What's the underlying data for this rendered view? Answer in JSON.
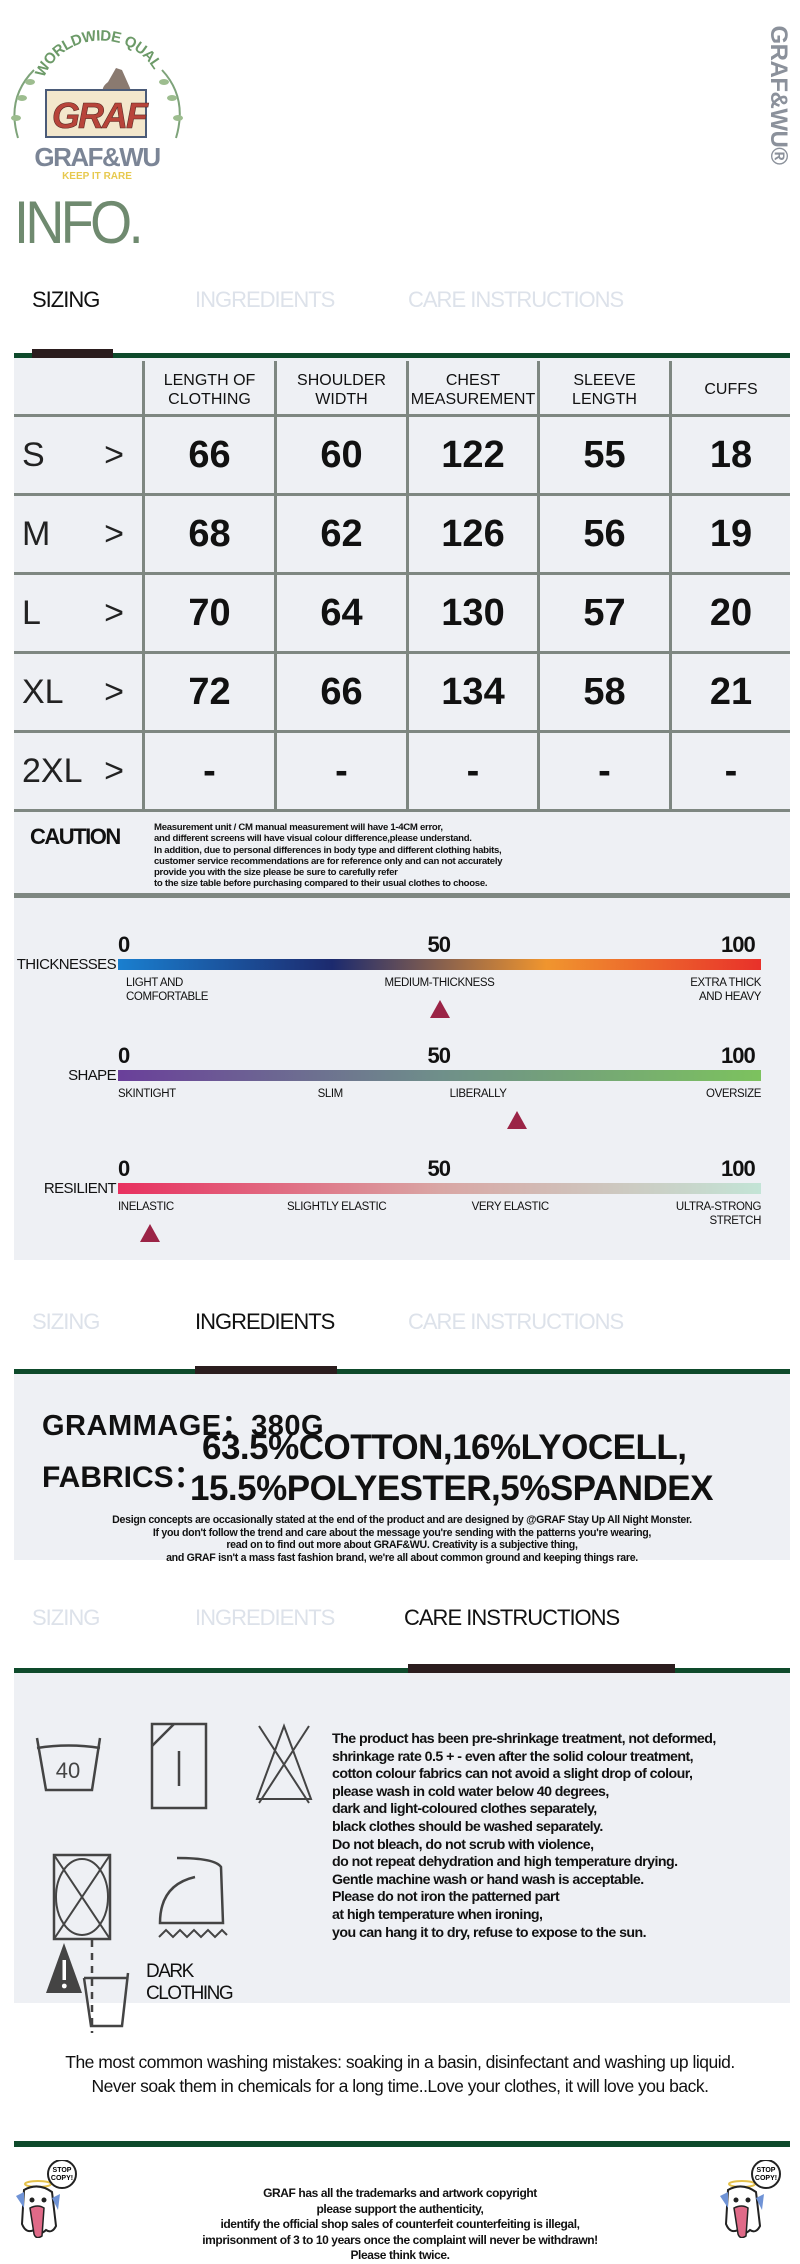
{
  "header": {
    "logo": {
      "arc_text": "WORLDWIDE QUALITY",
      "box_text": "GRAF",
      "brand": "GRAF&WU",
      "tagline": "KEEP IT RARE"
    },
    "vertical_brand": "GRAF&WU®",
    "title": "INFO."
  },
  "tabs": [
    "SIZING",
    "INGREDIENTS",
    "CARE INSTRUCTIONS"
  ],
  "sizing": {
    "columns": [
      "LENGTH OF CLOTHING",
      "SHOULDER WIDTH",
      "CHEST MEASUREMENT",
      "SLEEVE LENGTH",
      "CUFFS"
    ],
    "rows": [
      {
        "size": "S",
        "arrow": ">",
        "values": [
          "66",
          "60",
          "122",
          "55",
          "18"
        ]
      },
      {
        "size": "M",
        "arrow": ">",
        "values": [
          "68",
          "62",
          "126",
          "56",
          "19"
        ]
      },
      {
        "size": "L",
        "arrow": ">",
        "values": [
          "70",
          "64",
          "130",
          "57",
          "20"
        ]
      },
      {
        "size": "XL",
        "arrow": ">",
        "values": [
          "72",
          "66",
          "134",
          "58",
          "21"
        ]
      },
      {
        "size": "2XL",
        "arrow": ">",
        "values": [
          "-",
          "-",
          "-",
          "-",
          "-"
        ]
      }
    ],
    "caution_title": "CAUTION",
    "caution_lines": [
      "Measurement unit / CM manual measurement will have 1-4CM error,",
      "and different screens will have visual colour difference,please understand.",
      "In addition, due to personal differences in body type and different clothing habits,",
      "customer service recommendations are for reference only and can not accurately",
      "provide you with the size please be sure to carefully refer",
      "to the size table before purchasing compared to their usual clothes to choose."
    ]
  },
  "scales": [
    {
      "label": "THICKNESSES",
      "ticks": [
        "0",
        "50",
        "100"
      ],
      "value": 50,
      "gradient": [
        "#1a7fcf",
        "#1c2a6e",
        "#f0952e",
        "#e8312a"
      ],
      "captions": [
        "LIGHT AND\nCOMFORTABLE",
        "MEDIUM-THICKNESS",
        "EXTRA THICK\nAND HEAVY"
      ]
    },
    {
      "label": "SHAPE",
      "ticks": [
        "0",
        "50",
        "100"
      ],
      "value": 62,
      "gradient": [
        "#6a3f9a",
        "#6f8f8a",
        "#7cc25e"
      ],
      "captions": [
        "SKINTIGHT",
        "SLIM",
        "LIBERALLY",
        "OVERSIZE"
      ]
    },
    {
      "label": "RESILIENT",
      "ticks": [
        "0",
        "50",
        "100"
      ],
      "value": 5,
      "gradient": [
        "#e8305f",
        "#d9a6a4",
        "#c3e4d6"
      ],
      "captions": [
        "INELASTIC",
        "SLIGHTLY ELASTIC",
        "VERY ELASTIC",
        "ULTRA-STRONG\nSTRETCH"
      ]
    }
  ],
  "ingredients": {
    "grammage": "GRAMMAGE：380G",
    "fabrics_label": "FABRICS：",
    "fabrics_line1": "63.5%COTTON,16%LYOCELL,",
    "fabrics_line2": "15.5%POLYESTER,5%SPANDEX",
    "design_lines": [
      "Design concepts are occasionally stated at the end of the product and are designed by @GRAF Stay Up All Night Monster.",
      "If you don't follow the trend and care about the message you're sending with the patterns you're wearing,",
      "read on to find out more about GRAF&WU. Creativity is a subjective thing,",
      "and GRAF isn't a mass fast fashion brand, we're all about common ground and keeping things rare."
    ]
  },
  "care": {
    "wash_temp": "40",
    "icons": [
      "wash-40-icon",
      "tumble-dry-icon",
      "no-bleach-icon",
      "no-dryclean-icon",
      "iron-low-icon",
      "wash-dark-separately-icon"
    ],
    "dark_label": "DARK\nCLOTHING",
    "lines": [
      "The product has been pre-shrinkage treatment, not deformed,",
      "shrinkage rate 0.5 + - even after the solid colour treatment,",
      "cotton colour fabrics can not avoid a slight drop of colour,",
      "please wash in cold water below 40 degrees,",
      "dark and light-coloured clothes separately,",
      "black clothes should be washed separately.",
      "Do not bleach, do not scrub with violence,",
      "do not repeat dehydration and high temperature drying.",
      "Gentle machine wash or hand wash is acceptable.",
      "Please do not iron the patterned part",
      "at high temperature when ironing,",
      "you can hang it to dry, refuse to expose to the sun."
    ]
  },
  "mistakes": [
    "The most common washing mistakes: soaking in a basin, disinfectant and washing up liquid.",
    "Never soak them in chemicals for a long time..Love your clothes, it will love you back."
  ],
  "footer": {
    "sticker_text": "STOP COPY!",
    "lines": [
      "GRAF has all the trademarks and artwork copyright",
      "please support the authenticity,",
      "identify the official shop sales of counterfeit counterfeiting is illegal,",
      "imprisonment of 3 to 10 years once the complaint will never be withdrawn!",
      "Please think twice."
    ]
  },
  "colors": {
    "accent_green": "#0e4a2b",
    "dark_bar": "#2b1d1e",
    "panel": "#eef0f4",
    "title_green": "#6f8a6f",
    "marker": "#9b2446"
  }
}
